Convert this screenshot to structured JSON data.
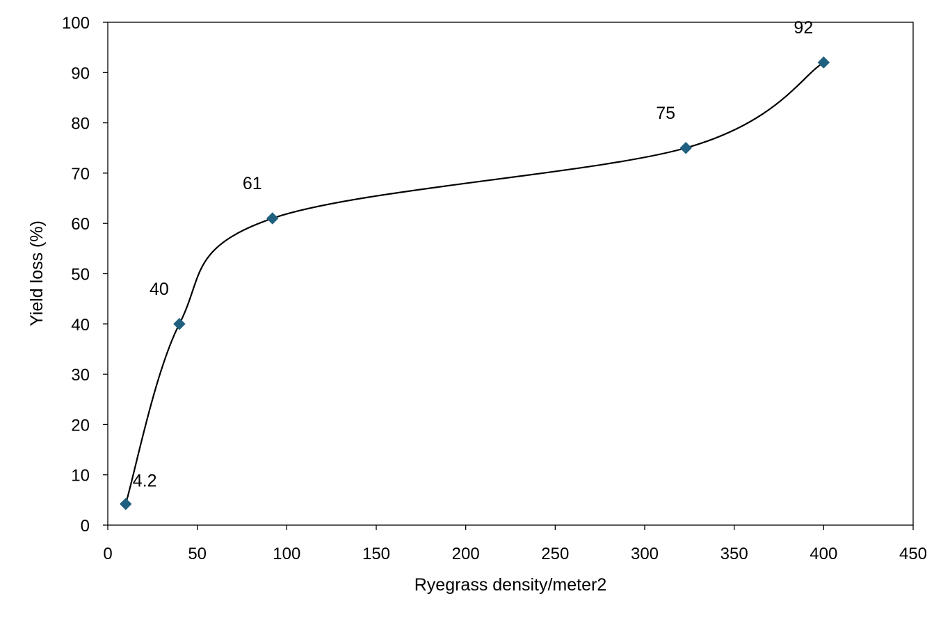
{
  "chart_data": {
    "type": "scatter",
    "title": "",
    "xlabel": "Ryegrass density/meter2",
    "ylabel": "Yield loss (%)",
    "xlim": [
      0,
      450
    ],
    "ylim": [
      0,
      100
    ],
    "x_ticks": [
      "0",
      "50",
      "100",
      "150",
      "200",
      "250",
      "300",
      "350",
      "400",
      "450"
    ],
    "y_ticks": [
      "0",
      "10",
      "20",
      "30",
      "40",
      "50",
      "60",
      "70",
      "80",
      "90",
      "100"
    ],
    "grid": false,
    "legend": "none",
    "smooth_line": true,
    "marker": "diamond",
    "line_color": "#000000",
    "marker_color": "#1f5f7f",
    "series": [
      {
        "x": [
          10,
          40,
          92,
          323,
          400
        ],
        "y": [
          4.2,
          40,
          61,
          75,
          92
        ],
        "data_labels": [
          "4.2",
          "40",
          "61",
          "75",
          "92"
        ]
      }
    ]
  }
}
